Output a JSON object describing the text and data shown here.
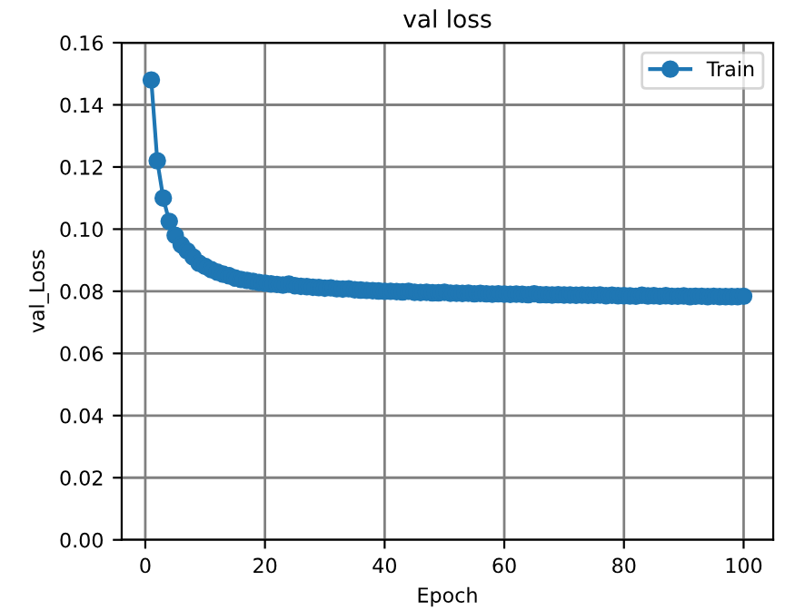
{
  "chart_data": {
    "type": "line",
    "title": "val loss",
    "xlabel": "Epoch",
    "ylabel": "val_Loss",
    "x": [
      1,
      2,
      3,
      4,
      5,
      6,
      7,
      8,
      9,
      10,
      11,
      12,
      13,
      14,
      15,
      16,
      17,
      18,
      19,
      20,
      21,
      22,
      23,
      24,
      25,
      26,
      27,
      28,
      29,
      30,
      31,
      32,
      33,
      34,
      35,
      36,
      37,
      38,
      39,
      40,
      41,
      42,
      43,
      44,
      45,
      46,
      47,
      48,
      49,
      50,
      51,
      52,
      53,
      54,
      55,
      56,
      57,
      58,
      59,
      60,
      61,
      62,
      63,
      64,
      65,
      66,
      67,
      68,
      69,
      70,
      71,
      72,
      73,
      74,
      75,
      76,
      77,
      78,
      79,
      80,
      81,
      82,
      83,
      84,
      85,
      86,
      87,
      88,
      89,
      90,
      91,
      92,
      93,
      94,
      95,
      96,
      97,
      98,
      99,
      100
    ],
    "series": [
      {
        "name": "Train",
        "color": "#1f77b4",
        "values": [
          0.148,
          0.122,
          0.11,
          0.1025,
          0.098,
          0.095,
          0.093,
          0.091,
          0.089,
          0.088,
          0.087,
          0.0862,
          0.0855,
          0.085,
          0.0843,
          0.0838,
          0.0835,
          0.0832,
          0.0828,
          0.0826,
          0.0824,
          0.0822,
          0.082,
          0.0823,
          0.0818,
          0.0816,
          0.0815,
          0.0813,
          0.0812,
          0.081,
          0.0811,
          0.0808,
          0.0807,
          0.0808,
          0.0805,
          0.0804,
          0.0803,
          0.0802,
          0.0801,
          0.08,
          0.08,
          0.0799,
          0.0798,
          0.08,
          0.0797,
          0.0796,
          0.0797,
          0.0795,
          0.0795,
          0.0797,
          0.0794,
          0.0794,
          0.0793,
          0.0794,
          0.0792,
          0.0793,
          0.0792,
          0.0791,
          0.0792,
          0.0791,
          0.079,
          0.0791,
          0.079,
          0.0789,
          0.0792,
          0.0789,
          0.0789,
          0.0788,
          0.0789,
          0.0788,
          0.0788,
          0.0787,
          0.0788,
          0.0787,
          0.0787,
          0.0788,
          0.0786,
          0.0787,
          0.0786,
          0.0786,
          0.0785,
          0.0784,
          0.0787,
          0.0785,
          0.0786,
          0.0784,
          0.0786,
          0.0784,
          0.0784,
          0.0785,
          0.0783,
          0.0784,
          0.0784,
          0.0783,
          0.0784,
          0.0783,
          0.0783,
          0.0783,
          0.0783,
          0.0784
        ]
      }
    ],
    "xlim": [
      -3.95,
      104.95
    ],
    "xticks": [
      0,
      20,
      40,
      60,
      80,
      100
    ],
    "ylim": [
      0,
      0.16
    ],
    "yticks": [
      {
        "value": 0,
        "label": "0.00"
      },
      {
        "value": 0.02,
        "label": "0.02"
      },
      {
        "value": 0.04,
        "label": "0.04"
      },
      {
        "value": 0.06,
        "label": "0.06"
      },
      {
        "value": 0.08,
        "label": "0.08"
      },
      {
        "value": 0.1,
        "label": "0.10"
      },
      {
        "value": 0.12,
        "label": "0.12"
      },
      {
        "value": 0.14,
        "label": "0.14"
      },
      {
        "value": 0.16,
        "label": "0.16"
      }
    ],
    "grid": true,
    "legend": "top right",
    "marker": "circle",
    "line_style": "solid"
  }
}
